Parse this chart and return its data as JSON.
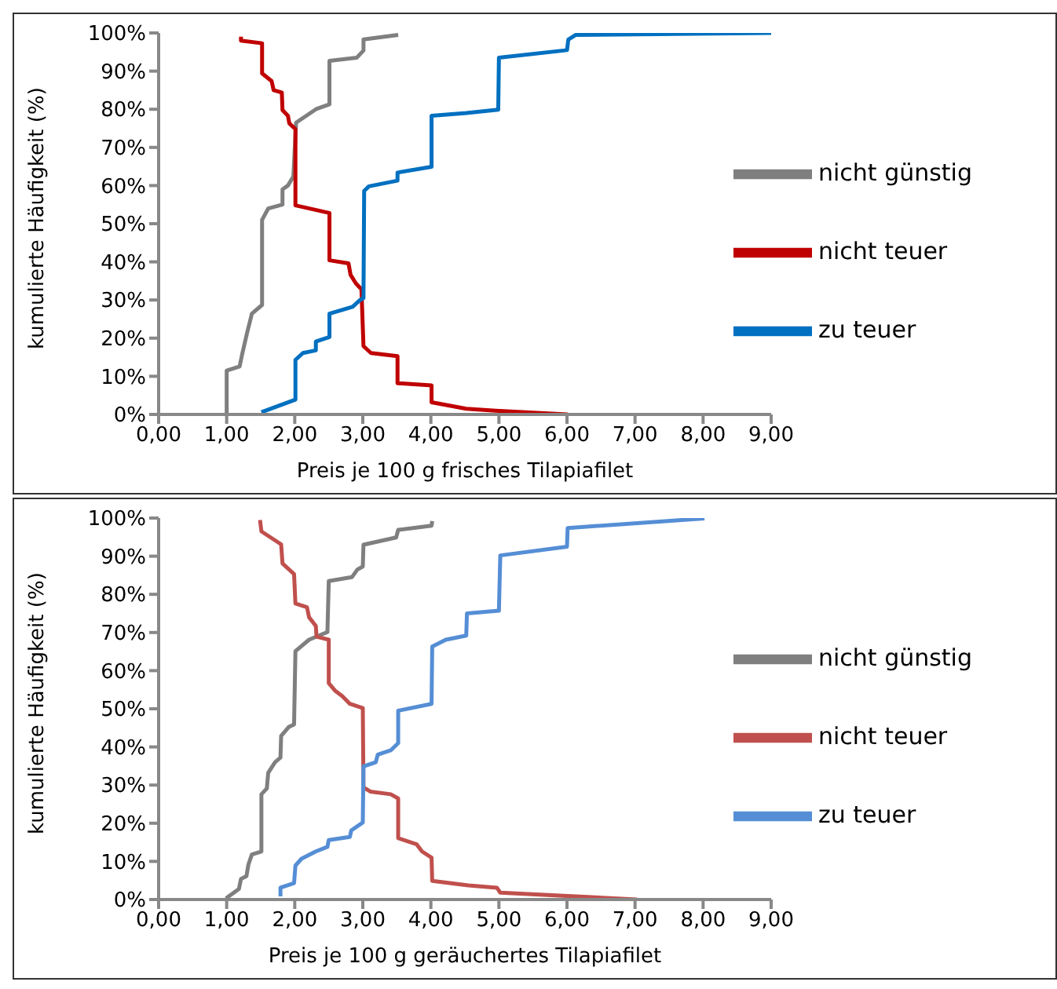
{
  "chart_data": [
    {
      "type": "line",
      "xlabel": "Preis je 100 g frisches Tilapiafilet",
      "ylabel": "kumulierte Häufigkeit (%)",
      "xlim": [
        0,
        9
      ],
      "xticks": [
        {
          "value": 0,
          "label": "0,00"
        },
        {
          "value": 1,
          "label": "1,00"
        },
        {
          "value": 2,
          "label": "2,00"
        },
        {
          "value": 3,
          "label": "3,00"
        },
        {
          "value": 4,
          "label": "4,00"
        },
        {
          "value": 5,
          "label": "5,00"
        },
        {
          "value": 6,
          "label": "6,00"
        },
        {
          "value": 7,
          "label": "7,00"
        },
        {
          "value": 8,
          "label": "8,00"
        },
        {
          "value": 9,
          "label": "9,00"
        }
      ],
      "ylim": [
        0,
        100
      ],
      "yticks": [
        {
          "value": 0,
          "label": "0%"
        },
        {
          "value": 10,
          "label": "10%"
        },
        {
          "value": 20,
          "label": "20%"
        },
        {
          "value": 30,
          "label": "30%"
        },
        {
          "value": 40,
          "label": "40%"
        },
        {
          "value": 50,
          "label": "50%"
        },
        {
          "value": 60,
          "label": "60%"
        },
        {
          "value": 70,
          "label": "70%"
        },
        {
          "value": 80,
          "label": "80%"
        },
        {
          "value": 90,
          "label": "90%"
        },
        {
          "value": 100,
          "label": "100%"
        }
      ],
      "grid": false,
      "legend": "right",
      "marker": "none",
      "line_style": "solid",
      "series": [
        {
          "name": "nicht günstig",
          "color": "#7f7f7f",
          "x": [
            1.0,
            1.0,
            1.19,
            1.23,
            1.3,
            1.37,
            1.52,
            1.52,
            1.61,
            1.82,
            1.82,
            1.9,
            1.98,
            2.02,
            2.31,
            2.51,
            2.51,
            2.91,
            3.01,
            3.01,
            3.52
          ],
          "values": [
            0,
            11.5,
            12.6,
            16,
            21.4,
            26.4,
            28.7,
            51,
            54,
            55,
            59,
            60,
            62.4,
            76.5,
            80,
            81.3,
            92.7,
            93.5,
            95.4,
            98.3,
            99.5
          ]
        },
        {
          "name": "nicht teuer",
          "color": "#c00000",
          "x": [
            1.21,
            1.21,
            1.52,
            1.52,
            1.66,
            1.69,
            1.81,
            1.82,
            1.9,
            1.92,
            2.01,
            2.01,
            2.51,
            2.51,
            2.79,
            2.82,
            2.9,
            2.98,
            3.01,
            3.12,
            3.51,
            3.51,
            4.01,
            4.01,
            4.52,
            4.95,
            6.01
          ],
          "values": [
            99,
            98,
            97.3,
            89.4,
            87.4,
            85,
            84.4,
            79.8,
            78.3,
            76.3,
            74.8,
            54.8,
            52.8,
            40.4,
            39.6,
            36.6,
            34.3,
            32.8,
            17.9,
            16.1,
            15.3,
            8.2,
            7.6,
            3.2,
            1.5,
            1.0,
            0
          ]
        },
        {
          "name": "zu teuer",
          "color": "#0070c0",
          "x": [
            1.51,
            2.01,
            2.01,
            2.12,
            2.31,
            2.31,
            2.51,
            2.51,
            2.85,
            2.96,
            3.01,
            3.02,
            3.09,
            3.51,
            3.51,
            4.01,
            4.01,
            4.52,
            4.99,
            5.0,
            6.0,
            6.02,
            6.13,
            9.0
          ],
          "values": [
            0.6,
            3.9,
            14.3,
            16.1,
            16.8,
            19.1,
            20.3,
            26.4,
            28.2,
            30,
            30.5,
            58.6,
            59.8,
            61.3,
            63.4,
            64.9,
            78.3,
            79,
            79.9,
            93.5,
            95.5,
            98.3,
            99.5,
            100
          ]
        }
      ]
    },
    {
      "type": "line",
      "xlabel": "Preis je 100 g geräuchertes Tilapiafilet",
      "ylabel": "kumulierte Häufigkeit (%)",
      "xlim": [
        0,
        9
      ],
      "xticks": [
        {
          "value": 0,
          "label": "0,00"
        },
        {
          "value": 1,
          "label": "1,00"
        },
        {
          "value": 2,
          "label": "2,00"
        },
        {
          "value": 3,
          "label": "3,00"
        },
        {
          "value": 4,
          "label": "4,00"
        },
        {
          "value": 5,
          "label": "5,00"
        },
        {
          "value": 6,
          "label": "6,00"
        },
        {
          "value": 7,
          "label": "7,00"
        },
        {
          "value": 8,
          "label": "8,00"
        },
        {
          "value": 9,
          "label": "9,00"
        }
      ],
      "ylim": [
        0,
        100
      ],
      "yticks": [
        {
          "value": 0,
          "label": "0%"
        },
        {
          "value": 10,
          "label": "10%"
        },
        {
          "value": 20,
          "label": "20%"
        },
        {
          "value": 30,
          "label": "30%"
        },
        {
          "value": 40,
          "label": "40%"
        },
        {
          "value": 50,
          "label": "50%"
        },
        {
          "value": 60,
          "label": "60%"
        },
        {
          "value": 70,
          "label": "70%"
        },
        {
          "value": 80,
          "label": "80%"
        },
        {
          "value": 90,
          "label": "90%"
        },
        {
          "value": 100,
          "label": "100%"
        }
      ],
      "grid": false,
      "legend": "right",
      "marker": "none",
      "line_style": "solid",
      "series": [
        {
          "name": "nicht günstig",
          "color": "#7f7f7f",
          "x": [
            0.99,
            1.18,
            1.21,
            1.29,
            1.32,
            1.37,
            1.51,
            1.51,
            1.59,
            1.61,
            1.71,
            1.79,
            1.8,
            1.91,
            1.99,
            2.01,
            2.21,
            2.48,
            2.5,
            2.84,
            2.92,
            3.0,
            3.01,
            3.49,
            3.52,
            4.01,
            4.02
          ],
          "values": [
            0.3,
            2.8,
            5.4,
            6.1,
            9.2,
            11.8,
            12.6,
            27.6,
            29.1,
            33.2,
            36,
            37.2,
            42.9,
            45.2,
            45.9,
            65.1,
            68.1,
            70.1,
            83.5,
            84.5,
            86.5,
            87.3,
            93,
            94.9,
            96.9,
            98,
            99.2
          ]
        },
        {
          "name": "nicht teuer",
          "color": "#c0504d",
          "x": [
            1.49,
            1.51,
            1.8,
            1.82,
            1.99,
            2.01,
            2.18,
            2.21,
            2.31,
            2.32,
            2.5,
            2.5,
            2.59,
            2.7,
            2.81,
            3.0,
            3.01,
            3.11,
            3.41,
            3.52,
            3.52,
            3.79,
            3.87,
            4.01,
            4.02,
            4.55,
            4.97,
            5.02,
            7.03
          ],
          "values": [
            99.5,
            96.5,
            93.1,
            88.1,
            85.3,
            77.6,
            76.6,
            74,
            71.7,
            68.9,
            68.1,
            56.7,
            54.8,
            53.3,
            51.3,
            50.2,
            29.4,
            28.3,
            27.6,
            26.5,
            16.1,
            14.5,
            12.6,
            11,
            4.9,
            3.7,
            3.1,
            1.8,
            0
          ]
        },
        {
          "name": "zu teuer",
          "color": "#558ed5",
          "x": [
            1.79,
            1.79,
            1.99,
            2.01,
            2.1,
            2.31,
            2.48,
            2.5,
            2.81,
            2.83,
            3.0,
            3.01,
            3.19,
            3.22,
            3.41,
            3.52,
            3.52,
            4.01,
            4.02,
            4.22,
            4.52,
            4.53,
            5.0,
            5.02,
            6.0,
            6.01,
            8.02
          ],
          "values": [
            0.8,
            3.1,
            4.3,
            8.9,
            10.7,
            12.6,
            13.8,
            15.6,
            16.4,
            18.1,
            20.2,
            34.9,
            36,
            38,
            39.1,
            41,
            49.5,
            51.3,
            66.3,
            68.1,
            69.2,
            75,
            75.7,
            90.2,
            92.5,
            97.4,
            99.9
          ]
        }
      ]
    }
  ]
}
